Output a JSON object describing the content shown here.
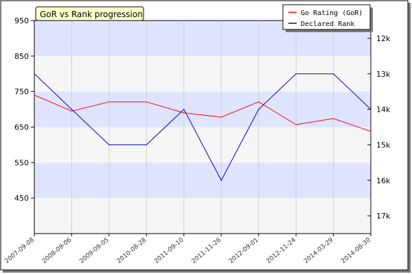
{
  "chart_data": {
    "type": "line",
    "title": "GoR vs Rank progression",
    "categories": [
      "2007-09-08",
      "2008-09-06",
      "2009-09-05",
      "2010-08-28",
      "2011-09-10",
      "2011-11-26",
      "2012-09-01",
      "2012-11-24",
      "2014-03-29",
      "2014-08-30"
    ],
    "y_left": {
      "ticks": [
        950,
        850,
        750,
        650,
        550,
        450
      ],
      "ylim": [
        350,
        950
      ]
    },
    "y_right": {
      "ticks": [
        "12k",
        "13k",
        "14k",
        "15k",
        "16k",
        "17k"
      ],
      "ticks_numeric": [
        12,
        13,
        14,
        15,
        16,
        17
      ],
      "ylim": [
        11.5,
        17.5
      ],
      "inverted": true
    },
    "series": [
      {
        "name": "Go Rating (GoR)",
        "color": "#ff0000",
        "axis": "left",
        "values": [
          740,
          695,
          721,
          721,
          690,
          678,
          721,
          657,
          674,
          638
        ]
      },
      {
        "name": "Declared Rank",
        "color": "#0000cc",
        "axis": "right",
        "values": [
          13,
          14,
          15,
          15,
          14,
          16,
          14,
          13,
          13,
          14
        ]
      }
    ],
    "grid": true,
    "legend_position": "top-right"
  }
}
